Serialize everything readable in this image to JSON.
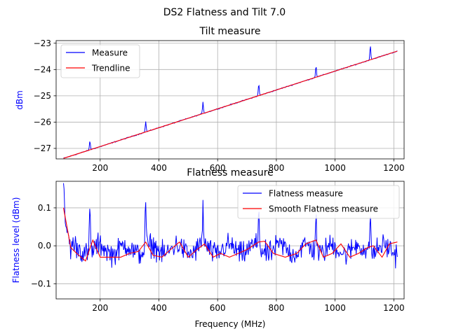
{
  "figure": {
    "title": "DS2 Flatness and Tilt 7.0"
  },
  "chart_data": [
    {
      "type": "line",
      "title": "Tilt measure",
      "xlabel": "",
      "ylabel": "dBm",
      "xlim": [
        50,
        1235
      ],
      "ylim": [
        -27.4,
        -22.9
      ],
      "xticks": [
        200,
        400,
        600,
        800,
        1000,
        1200
      ],
      "yticks": [
        -27,
        -26,
        -25,
        -24,
        -23
      ],
      "xtick_labels": [
        "200",
        "400",
        "600",
        "800",
        "1000",
        "1200"
      ],
      "ytick_labels": [
        "−27",
        "−26",
        "−25",
        "−24",
        "−23"
      ],
      "grid": true,
      "legend": "upper left",
      "x_range": [
        75,
        1212
      ],
      "series": [
        {
          "name": "Measure",
          "color": "#0000ff",
          "trend": [
            [
              75,
              -27.38
            ],
            [
              1212,
              -23.3
            ]
          ],
          "spikes": [
            [
              165,
              0.35
            ],
            [
              355,
              0.4
            ],
            [
              550,
              0.45
            ],
            [
              740,
              0.45
            ],
            [
              935,
              0.45
            ],
            [
              1120,
              0.55
            ]
          ]
        },
        {
          "name": "Trendline",
          "color": "#ff0000",
          "points": [
            [
              75,
              -27.38
            ],
            [
              1212,
              -23.3
            ]
          ]
        }
      ]
    },
    {
      "type": "line",
      "title": "Flatness measure",
      "xlabel": "Frequency (MHz)",
      "ylabel": "Flatness level (dBm)",
      "xlim": [
        50,
        1235
      ],
      "ylim": [
        -0.14,
        0.17
      ],
      "xticks": [
        200,
        400,
        600,
        800,
        1000,
        1200
      ],
      "yticks": [
        -0.1,
        0.0,
        0.1
      ],
      "xtick_labels": [
        "200",
        "400",
        "600",
        "800",
        "1000",
        "1200"
      ],
      "ytick_labels": [
        "−0.1",
        "0.0",
        "0.1"
      ],
      "grid": true,
      "legend": "upper right",
      "x_range": [
        75,
        1212
      ],
      "series": [
        {
          "name": "Flatness measure",
          "color": "#0000ff",
          "spikes": [
            [
              75,
              0.16
            ],
            [
              165,
              0.1
            ],
            [
              355,
              0.12
            ],
            [
              550,
              0.11
            ],
            [
              740,
              0.11
            ],
            [
              935,
              0.1
            ],
            [
              1120,
              0.1
            ]
          ]
        },
        {
          "name": "Smooth Flatness measure",
          "color": "#ff0000",
          "points": [
            [
              75,
              0.1
            ],
            [
              100,
              -0.005
            ],
            [
              120,
              -0.02
            ],
            [
              150,
              -0.04
            ],
            [
              175,
              0.015
            ],
            [
              200,
              -0.03
            ],
            [
              230,
              -0.03
            ],
            [
              270,
              -0.03
            ],
            [
              300,
              -0.02
            ],
            [
              330,
              -0.015
            ],
            [
              355,
              0.01
            ],
            [
              380,
              -0.025
            ],
            [
              410,
              -0.03
            ],
            [
              440,
              -0.01
            ],
            [
              470,
              0.01
            ],
            [
              500,
              -0.03
            ],
            [
              530,
              -0.01
            ],
            [
              555,
              0.005
            ],
            [
              585,
              -0.03
            ],
            [
              610,
              -0.02
            ],
            [
              640,
              -0.03
            ],
            [
              670,
              -0.02
            ],
            [
              700,
              -0.01
            ],
            [
              740,
              0.01
            ],
            [
              760,
              0.012
            ],
            [
              790,
              -0.02
            ],
            [
              830,
              -0.03
            ],
            [
              870,
              -0.02
            ],
            [
              900,
              0.005
            ],
            [
              935,
              0.015
            ],
            [
              960,
              -0.03
            ],
            [
              990,
              -0.02
            ],
            [
              1020,
              0.005
            ],
            [
              1050,
              -0.03
            ],
            [
              1080,
              -0.02
            ],
            [
              1110,
              -0.005
            ],
            [
              1130,
              0.0
            ],
            [
              1160,
              -0.03
            ],
            [
              1185,
              0.005
            ],
            [
              1212,
              0.01
            ]
          ]
        }
      ]
    }
  ]
}
